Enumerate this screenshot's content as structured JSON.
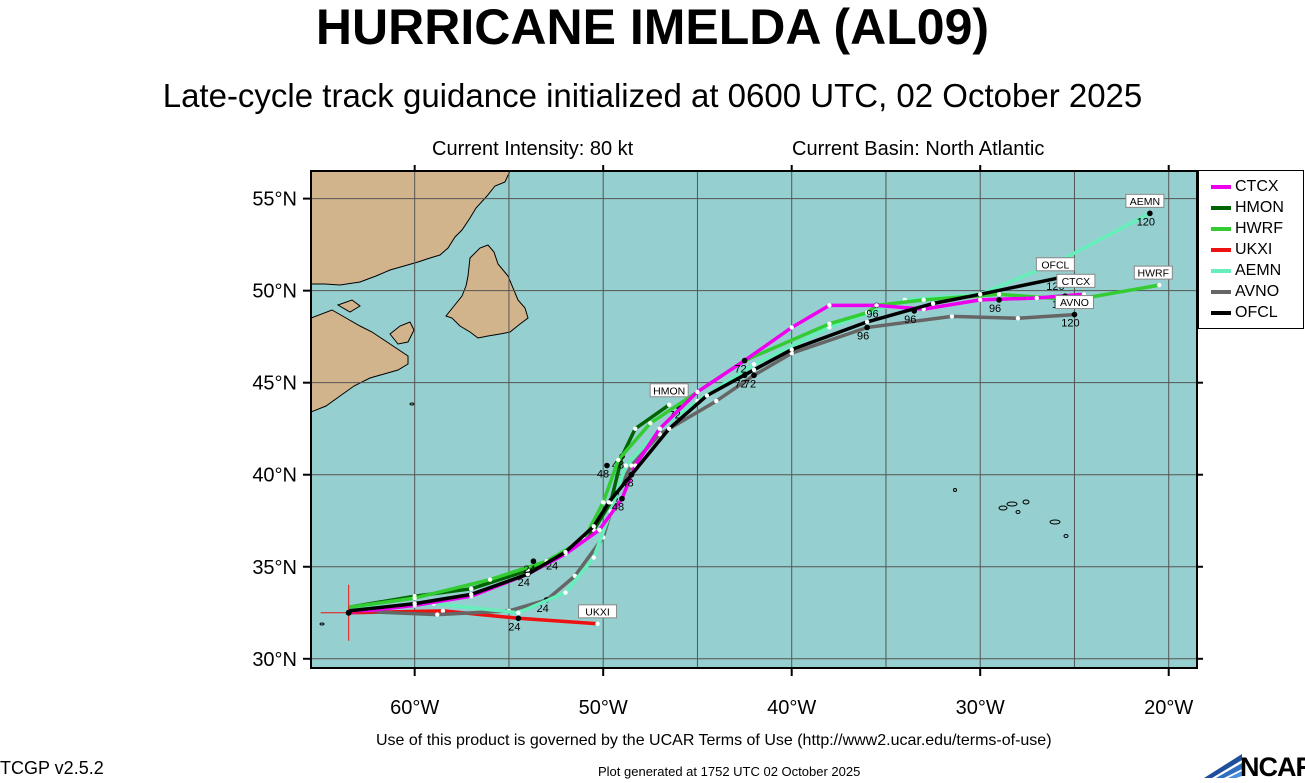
{
  "header": {
    "title": "HURRICANE IMELDA (AL09)",
    "subtitle": "Late-cycle track guidance initialized at 0600 UTC, 02 October 2025",
    "intensity": "Current Intensity: 80 kt",
    "basin": "Current Basin: North Atlantic"
  },
  "footer": {
    "terms": "Use of this product is governed by the UCAR Terms of Use (http://www2.ucar.edu/terms-of-use)",
    "version": "TCGP v2.5.2",
    "generated": "Plot generated at 1752 UTC   02 October 2025",
    "logo": "NCAR"
  },
  "axes": {
    "lon_labels": [
      "60°W",
      "50°W",
      "40°W",
      "30°W",
      "20°W"
    ],
    "lat_labels": [
      "55°N",
      "50°N",
      "45°N",
      "40°N",
      "35°N",
      "30°N"
    ]
  },
  "colors": {
    "ocean": "#96cfcf",
    "land": "#d2b48c",
    "grid": "#555555",
    "CTCX": "#ee00ee",
    "HMON": "#006400",
    "HWRF": "#33cc33",
    "UKXI": "#ee1111",
    "AEMN": "#66eebb",
    "AVNO": "#666666",
    "OFCL": "#000000"
  },
  "legend": [
    "CTCX",
    "HMON",
    "HWRF",
    "UKXI",
    "AEMN",
    "AVNO",
    "OFCL"
  ],
  "chart_data": {
    "type": "line",
    "xlim": [
      -65.5,
      -18.5
    ],
    "ylim": [
      29.5,
      56.5
    ],
    "x_ticks": [
      -60,
      -50,
      -40,
      -30,
      -20
    ],
    "y_ticks": [
      30,
      35,
      40,
      45,
      50,
      55
    ],
    "initial_position": [
      -63.5,
      32.5
    ],
    "series": [
      {
        "name": "UKXI",
        "label": "UKXI",
        "points": [
          [
            -63.5,
            32.5
          ],
          [
            -58.5,
            32.6
          ],
          [
            -54.5,
            32.2
          ],
          [
            -50.3,
            31.9
          ]
        ],
        "hour_labels": [
          {
            "hour": "24",
            "at": [
              -54.5,
              32.2
            ]
          }
        ]
      },
      {
        "name": "AVNO",
        "label": "AVNO",
        "points": [
          [
            -63.5,
            32.6
          ],
          [
            -58.8,
            32.4
          ],
          [
            -55,
            32.6
          ],
          [
            -53,
            33.2
          ],
          [
            -51.5,
            34.5
          ],
          [
            -50,
            36.6
          ],
          [
            -49.3,
            39
          ],
          [
            -48.5,
            40.5
          ],
          [
            -47,
            42.2
          ],
          [
            -44,
            44
          ],
          [
            -42,
            45.4
          ],
          [
            -40,
            46.6
          ],
          [
            -36,
            48
          ],
          [
            -31.5,
            48.6
          ],
          [
            -28,
            48.5
          ],
          [
            -25,
            48.7
          ]
        ],
        "hour_labels": [
          {
            "hour": "24",
            "at": [
              -53,
              33.2
            ]
          },
          {
            "hour": "48",
            "at": [
              -49.3,
              39
            ]
          },
          {
            "hour": "72",
            "at": [
              -42,
              45.4
            ]
          },
          {
            "hour": "96",
            "at": [
              -36,
              48
            ]
          },
          {
            "hour": "120",
            "at": [
              -25,
              48.7
            ]
          }
        ]
      },
      {
        "name": "AEMN",
        "label": "AEMN",
        "points": [
          [
            -63.5,
            32.7
          ],
          [
            -59,
            33
          ],
          [
            -54.5,
            32.5
          ],
          [
            -52,
            33.6
          ],
          [
            -50.5,
            35.5
          ],
          [
            -49.6,
            38
          ],
          [
            -48.8,
            40.5
          ],
          [
            -47,
            42.5
          ],
          [
            -45,
            44
          ],
          [
            -42,
            46
          ],
          [
            -38,
            48
          ],
          [
            -34,
            49.5
          ],
          [
            -30,
            49.8
          ],
          [
            -26,
            51.5
          ],
          [
            -21,
            54.2
          ]
        ],
        "hour_labels": [
          {
            "hour": "120",
            "at": [
              -21,
              54.2
            ]
          }
        ]
      },
      {
        "name": "HMON",
        "label": "HMON",
        "points": [
          [
            -63.5,
            32.8
          ],
          [
            -60,
            33.4
          ],
          [
            -57,
            33.8
          ],
          [
            -54,
            34.8
          ],
          [
            -52,
            35.8
          ],
          [
            -50.5,
            37
          ],
          [
            -49.6,
            38.5
          ],
          [
            -49,
            41
          ],
          [
            -48.3,
            42.5
          ],
          [
            -46.5,
            43.8
          ]
        ],
        "hour_labels": [
          {
            "hour": "24",
            "at": [
              -52.5,
              35.5
            ]
          },
          {
            "hour": "48",
            "at": [
              -49,
              41
            ]
          },
          {
            "hour": "72",
            "at": [
              -46,
              43.7
            ]
          }
        ]
      },
      {
        "name": "HWRF",
        "label": "HWRF",
        "points": [
          [
            -63.5,
            32.8
          ],
          [
            -60,
            33.3
          ],
          [
            -56,
            34.3
          ],
          [
            -53,
            35.3
          ],
          [
            -51,
            36.5
          ],
          [
            -50,
            38.5
          ],
          [
            -49.2,
            40.8
          ],
          [
            -47.5,
            42.8
          ],
          [
            -45,
            44.5
          ],
          [
            -42.5,
            46.2
          ],
          [
            -38,
            48.2
          ],
          [
            -36,
            48.8
          ],
          [
            -35.5,
            49.2
          ],
          [
            -33,
            49.5
          ],
          [
            -29,
            49.8
          ],
          [
            -25,
            49.5
          ],
          [
            -20.5,
            50.3
          ]
        ],
        "hour_labels": [
          {
            "hour": "48",
            "at": [
              -49.8,
              40.5
            ]
          },
          {
            "hour": "96",
            "at": [
              -35.5,
              49.2
            ]
          }
        ]
      },
      {
        "name": "CTCX",
        "label": "CTCX",
        "points": [
          [
            -63.5,
            32.5
          ],
          [
            -60,
            32.9
          ],
          [
            -57,
            33.4
          ],
          [
            -54,
            34.6
          ],
          [
            -52,
            35.7
          ],
          [
            -50.2,
            37
          ],
          [
            -49,
            38.7
          ],
          [
            -48.3,
            40.5
          ],
          [
            -47,
            42.5
          ],
          [
            -45,
            44.5
          ],
          [
            -42.5,
            46.2
          ],
          [
            -40,
            48
          ],
          [
            -38,
            49.2
          ],
          [
            -35.5,
            49.2
          ],
          [
            -33,
            49
          ],
          [
            -30,
            49.5
          ],
          [
            -27,
            49.6
          ],
          [
            -24.5,
            49.8
          ]
        ],
        "hour_labels": [
          {
            "hour": "24",
            "at": [
              -54,
              34.6
            ]
          },
          {
            "hour": "48",
            "at": [
              -49,
              38.7
            ]
          },
          {
            "hour": "72",
            "at": [
              -42.5,
              46.2
            ]
          },
          {
            "hour": "96",
            "at": [
              -29,
              49.5
            ]
          },
          {
            "hour": "120",
            "at": [
              -25.5,
              49.7
            ]
          }
        ]
      },
      {
        "name": "OFCL",
        "label": "OFCL",
        "points": [
          [
            -63.5,
            32.6
          ],
          [
            -60,
            33
          ],
          [
            -57,
            33.5
          ],
          [
            -54,
            34.6
          ],
          [
            -52,
            35.8
          ],
          [
            -50.5,
            37.2
          ],
          [
            -49.7,
            38.5
          ],
          [
            -48.5,
            40
          ],
          [
            -46.5,
            42.5
          ],
          [
            -44.5,
            44.3
          ],
          [
            -42,
            45.7
          ],
          [
            -40,
            46.8
          ],
          [
            -36,
            48.3
          ],
          [
            -32.5,
            49.3
          ],
          [
            -30,
            49.8
          ],
          [
            -25.8,
            50.7
          ]
        ],
        "hour_labels": [
          {
            "hour": "24",
            "at": [
              -53.7,
              35.3
            ]
          },
          {
            "hour": "48",
            "at": [
              -48.5,
              40
            ]
          },
          {
            "hour": "72",
            "at": [
              -42.5,
              45.4
            ]
          },
          {
            "hour": "96",
            "at": [
              -33.5,
              48.9
            ]
          },
          {
            "hour": "120",
            "at": [
              -25.8,
              50.7
            ]
          }
        ]
      }
    ]
  }
}
